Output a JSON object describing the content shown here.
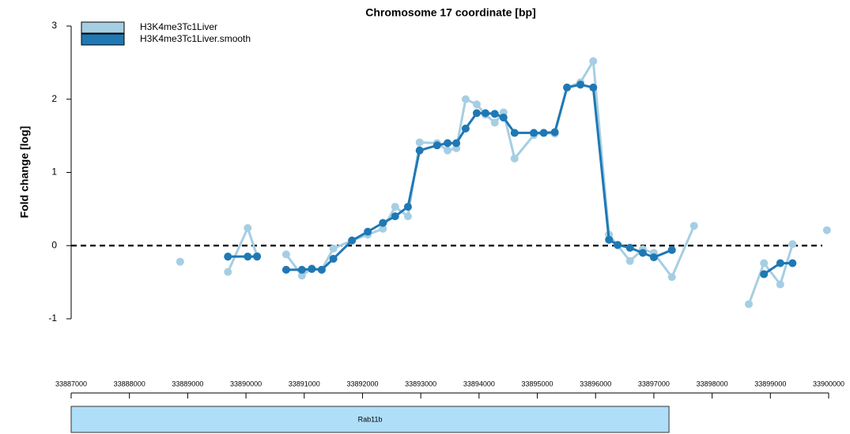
{
  "chart_data": {
    "type": "line",
    "title": "Chromosome 17 coordinate [bp]",
    "y_label": "Fold change [log]",
    "xlim": [
      33887000,
      33900000
    ],
    "xticks": [
      33887000,
      33888000,
      33889000,
      33890000,
      33891000,
      33892000,
      33893000,
      33894000,
      33895000,
      33896000,
      33897000,
      33898000,
      33899000,
      33900000
    ],
    "ylim": [
      -1,
      3
    ],
    "yticks": [
      -1,
      0,
      1,
      2,
      3
    ],
    "reference_line": 0,
    "legend": "top-left",
    "series": [
      {
        "name": "H3K4me3Tc1Liver",
        "color": "#a6cee3",
        "x": [
          33888870,
          null,
          33889690,
          33890030,
          33890190,
          null,
          33890690,
          33890960,
          33891130,
          33891300,
          33891500,
          33891820,
          33892090,
          33892350,
          33892560,
          33892780,
          33892980,
          33893280,
          33893460,
          33893610,
          33893770,
          33893960,
          33894110,
          33894270,
          33894420,
          33894610,
          33894940,
          33895110,
          33895300,
          33895510,
          33895740,
          33895960,
          33896230,
          33896380,
          33896590,
          33896810,
          33897000,
          33897310,
          33897690,
          null,
          33898630,
          33898890,
          33899170,
          33899380,
          null,
          33899970
        ],
        "values": [
          -0.22,
          null,
          -0.36,
          0.24,
          -0.14,
          null,
          -0.12,
          -0.41,
          -0.31,
          -0.33,
          -0.04,
          0.07,
          0.15,
          0.23,
          0.53,
          0.4,
          1.41,
          1.4,
          1.3,
          1.33,
          2.0,
          1.93,
          1.79,
          1.68,
          1.82,
          1.19,
          1.51,
          1.54,
          1.53,
          2.16,
          2.23,
          2.52,
          0.15,
          0.0,
          -0.21,
          -0.05,
          -0.1,
          -0.43,
          0.27,
          null,
          -0.8,
          -0.24,
          -0.53,
          0.02,
          null,
          0.21
        ]
      },
      {
        "name": "H3K4me3Tc1Liver.smooth",
        "color": "#1f78b4",
        "x": [
          33889690,
          33890030,
          33890190,
          null,
          33890690,
          33890960,
          33891130,
          33891300,
          33891500,
          33891820,
          33892090,
          33892350,
          33892560,
          33892780,
          33892980,
          33893280,
          33893460,
          33893610,
          33893770,
          33893960,
          33894110,
          33894270,
          33894420,
          33894610,
          33894940,
          33895110,
          33895300,
          33895510,
          33895740,
          33895960,
          33896230,
          33896380,
          33896590,
          33896810,
          33897000,
          33897310,
          null,
          33898890,
          33899170,
          33899380
        ],
        "values": [
          -0.15,
          -0.15,
          -0.15,
          null,
          -0.33,
          -0.33,
          -0.32,
          -0.33,
          -0.18,
          0.07,
          0.19,
          0.31,
          0.4,
          0.53,
          1.3,
          1.37,
          1.4,
          1.4,
          1.6,
          1.81,
          1.81,
          1.8,
          1.75,
          1.54,
          1.54,
          1.54,
          1.55,
          2.16,
          2.2,
          2.16,
          0.08,
          0.01,
          -0.03,
          -0.1,
          -0.16,
          -0.06,
          null,
          -0.39,
          -0.24,
          -0.24
        ]
      }
    ],
    "gene": {
      "name": "Rab11b",
      "start": 33887000,
      "end": 33897260,
      "color": "#afdef8"
    }
  }
}
